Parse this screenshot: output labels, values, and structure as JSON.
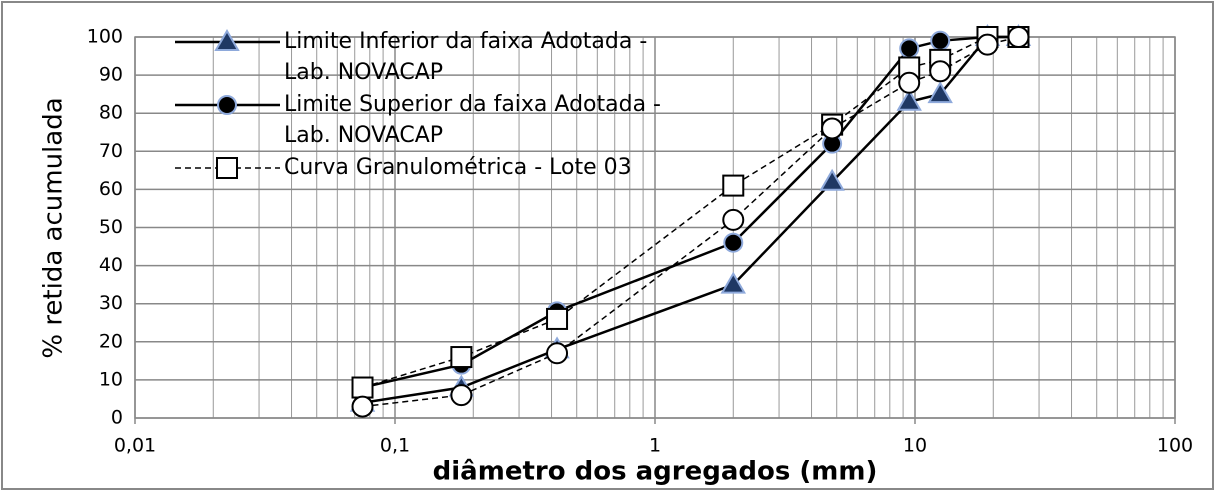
{
  "chart_data": {
    "type": "line",
    "xlabel": "diâmetro dos agregados (mm)",
    "ylabel": "% retida acumulada",
    "xscale": "log",
    "xlim": [
      0.01,
      100
    ],
    "xticks": [
      {
        "value": 0.01,
        "label": "0,01"
      },
      {
        "value": 0.1,
        "label": "0,1"
      },
      1,
      10,
      100
    ],
    "ylim": [
      0,
      100
    ],
    "yticks": [
      0,
      10,
      20,
      30,
      40,
      50,
      60,
      70,
      80,
      90,
      100
    ],
    "grid": true,
    "legend": "upper left",
    "series": [
      {
        "name": "Limite Inferior da faixa Adotada - Lab. NOVACAP",
        "color": "#000000",
        "marker": "triangle",
        "linestyle": "solid",
        "x": [
          0.075,
          0.18,
          0.42,
          2,
          4.8,
          9.5,
          12.5,
          19,
          25
        ],
        "values": [
          4,
          8,
          18,
          35,
          62,
          83,
          85,
          100,
          100
        ]
      },
      {
        "name": "Limite Superior da faixa Adotada - Lab. NOVACAP",
        "color": "#000000",
        "marker": "circle",
        "linestyle": "solid",
        "x": [
          0.075,
          0.18,
          0.42,
          2,
          4.8,
          9.5,
          12.5,
          19,
          25
        ],
        "values": [
          8,
          14,
          28,
          46,
          72,
          97,
          99,
          100,
          100
        ]
      },
      {
        "name": "Curva Granulométrica - Lote 03",
        "color": "#000000",
        "marker": "square",
        "linestyle": "dashed",
        "x": [
          0.075,
          0.18,
          0.42,
          2,
          4.8,
          9.5,
          12.5,
          19,
          25
        ],
        "values": [
          8,
          16,
          26,
          61,
          77,
          92,
          94,
          100,
          100
        ]
      },
      {
        "color": "#000000",
        "marker": "open-circle",
        "linestyle": "dashed",
        "x": [
          0.075,
          0.18,
          0.42,
          2,
          4.8,
          9.5,
          12.5,
          19,
          25
        ],
        "values": [
          3,
          6,
          17,
          52,
          76,
          88,
          91,
          98,
          100
        ]
      }
    ]
  }
}
